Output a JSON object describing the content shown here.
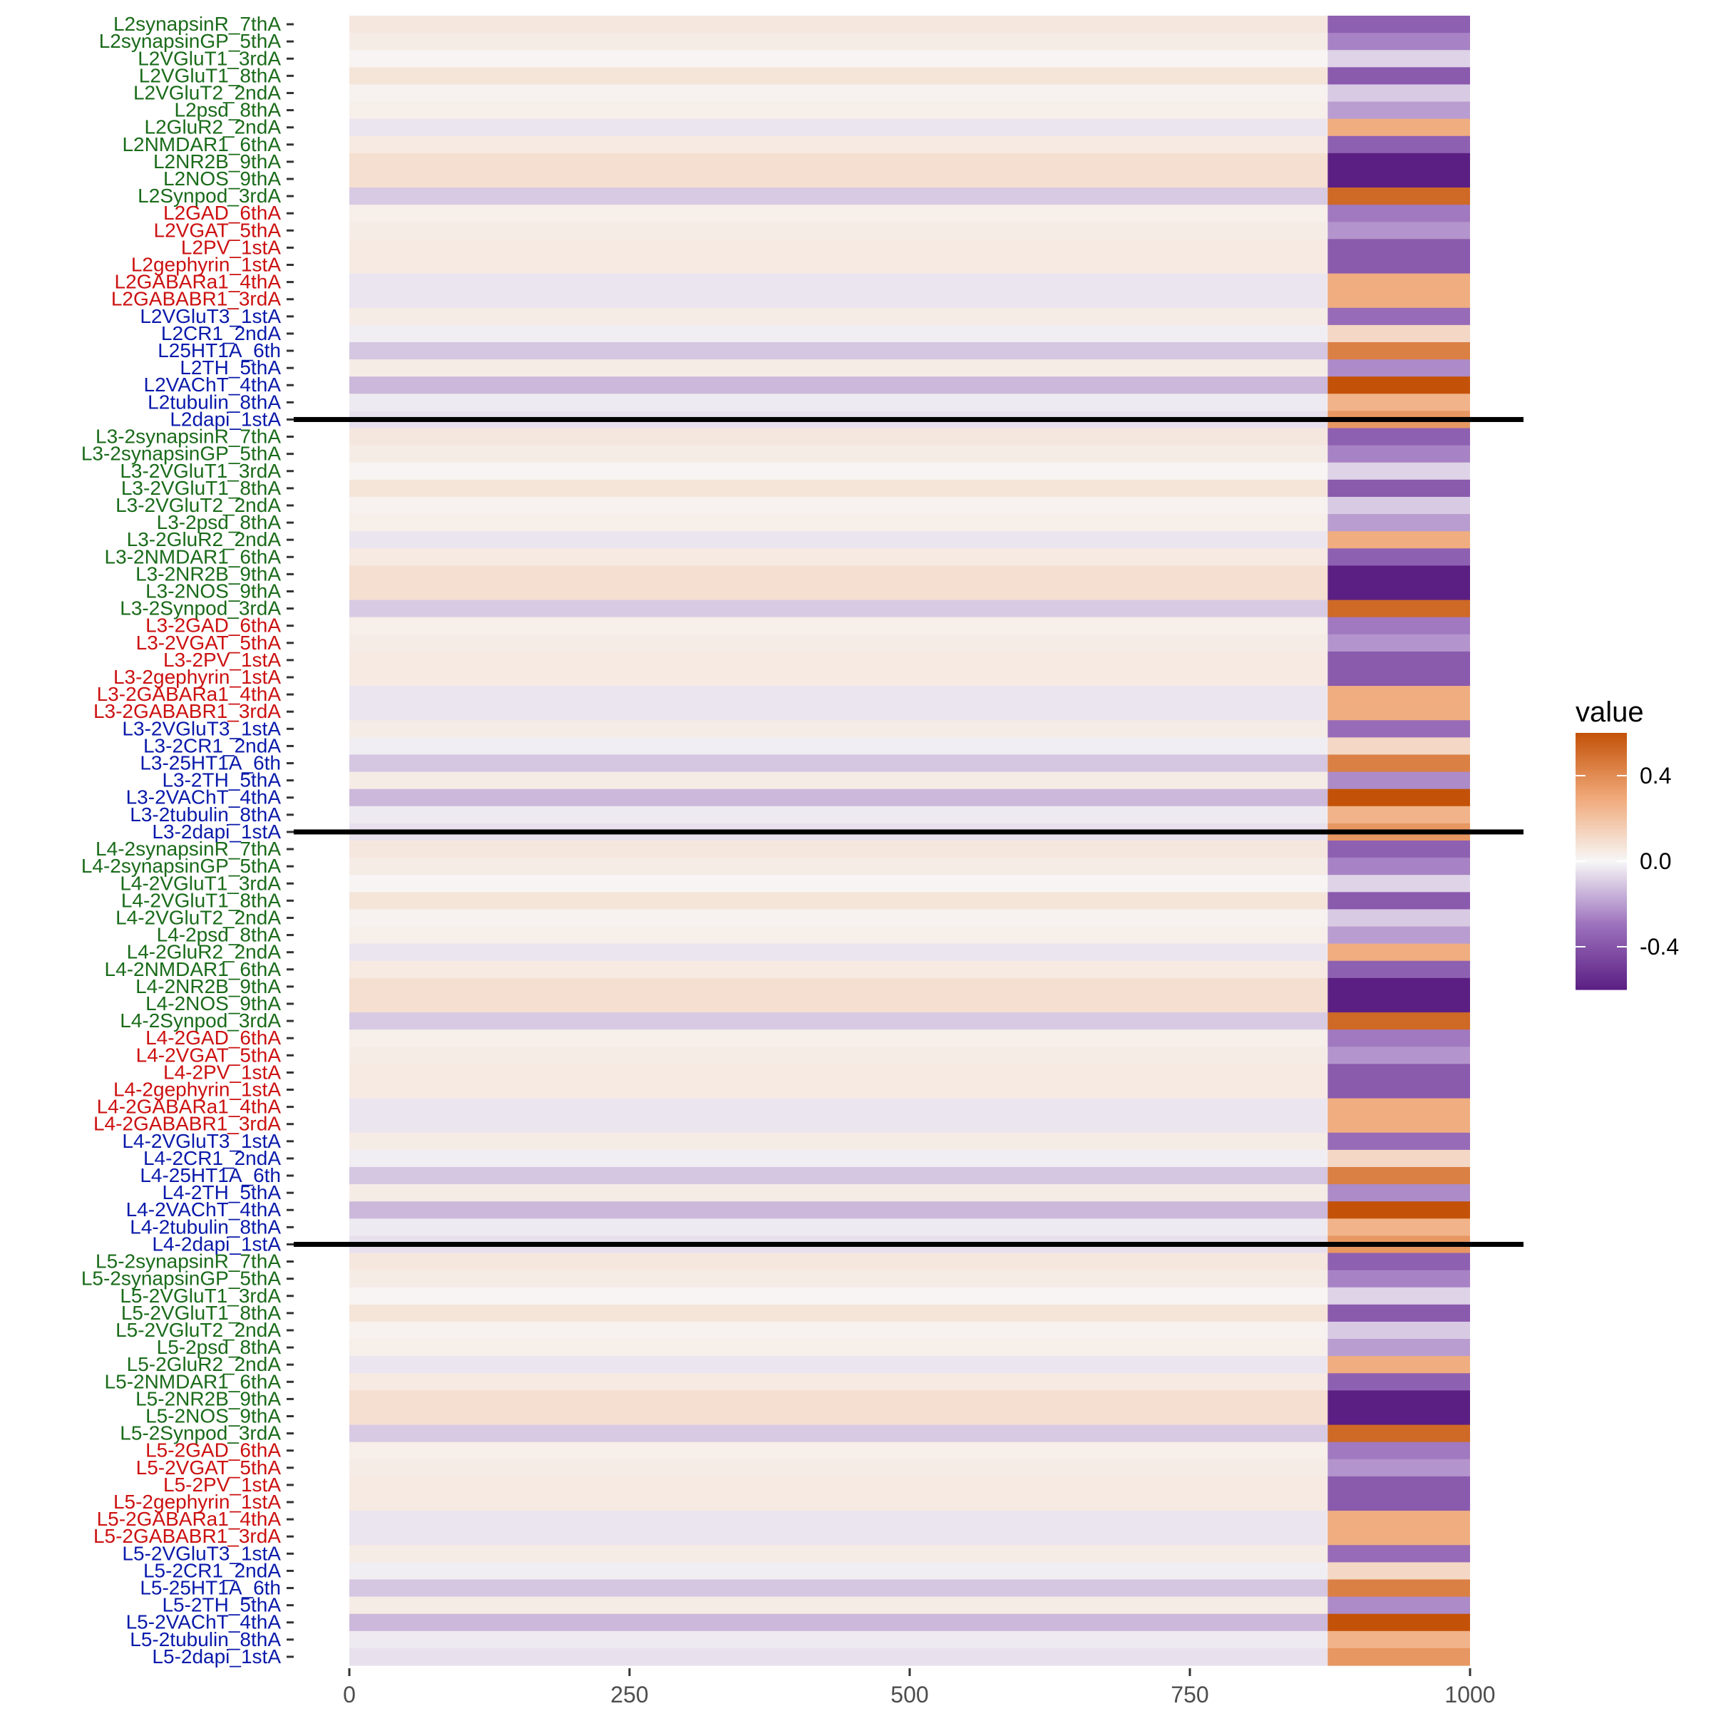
{
  "chart_data": {
    "type": "heatmap",
    "title": "",
    "xlabel": "",
    "ylabel": "",
    "xlim": [
      0,
      1000
    ],
    "x_ticks": [
      "0",
      "250",
      "500",
      "750",
      "1000"
    ],
    "x_tick_values": [
      0,
      250,
      500,
      750,
      1000
    ],
    "columns": [
      {
        "x_start": 0,
        "x_end": 873
      },
      {
        "x_start": 873,
        "x_end": 1000
      }
    ],
    "group_colors": {
      "excitatory": "#1a6b1a",
      "inhibitory": "#cc1111",
      "other": "#0a1aaa"
    },
    "row_order": "top-to-bottom",
    "groups": [
      {
        "rows": [
          {
            "label": "L2synapsinR_7thA",
            "class": "excitatory",
            "values": [
              0.06,
              -0.36
            ]
          },
          {
            "label": "L2synapsinGP_5thA",
            "class": "excitatory",
            "values": [
              0.04,
              -0.26
            ]
          },
          {
            "label": "L2VGluT1_3rdA",
            "class": "excitatory",
            "values": [
              0.01,
              -0.08
            ]
          },
          {
            "label": "L2VGluT1_8thA",
            "class": "excitatory",
            "values": [
              0.07,
              -0.38
            ]
          },
          {
            "label": "L2VGluT2_2ndA",
            "class": "excitatory",
            "values": [
              0.02,
              -0.1
            ]
          },
          {
            "label": "L2psd_8thA",
            "class": "excitatory",
            "values": [
              0.03,
              -0.2
            ]
          },
          {
            "label": "L2GluR2_2ndA",
            "class": "excitatory",
            "values": [
              -0.04,
              0.28
            ]
          },
          {
            "label": "L2NMDAR1_6thA",
            "class": "excitatory",
            "values": [
              0.05,
              -0.36
            ]
          },
          {
            "label": "L2NR2B_9thA",
            "class": "excitatory",
            "values": [
              0.09,
              -0.6
            ]
          },
          {
            "label": "L2NOS_9thA",
            "class": "excitatory",
            "values": [
              0.09,
              -0.6
            ]
          },
          {
            "label": "L2Synpod_3rdA",
            "class": "excitatory",
            "values": [
              -0.1,
              0.52
            ]
          },
          {
            "label": "L2GAD_6thA",
            "class": "inhibitory",
            "values": [
              0.03,
              -0.28
            ]
          },
          {
            "label": "L2VGAT_5thA",
            "class": "inhibitory",
            "values": [
              0.04,
              -0.22
            ]
          },
          {
            "label": "L2PV_1stA",
            "class": "inhibitory",
            "values": [
              0.05,
              -0.38
            ]
          },
          {
            "label": "L2gephyrin_1stA",
            "class": "inhibitory",
            "values": [
              0.05,
              -0.38
            ]
          },
          {
            "label": "L2GABARa1_4thA",
            "class": "inhibitory",
            "values": [
              -0.04,
              0.28
            ]
          },
          {
            "label": "L2GABABR1_3rdA",
            "class": "inhibitory",
            "values": [
              -0.04,
              0.28
            ]
          },
          {
            "label": "L2VGluT3_1stA",
            "class": "other",
            "values": [
              0.04,
              -0.32
            ]
          },
          {
            "label": "L2CR1_2ndA",
            "class": "other",
            "values": [
              -0.02,
              0.12
            ]
          },
          {
            "label": "L25HT1A_6th",
            "class": "other",
            "values": [
              -0.11,
              0.44
            ]
          },
          {
            "label": "L2TH_5thA",
            "class": "other",
            "values": [
              0.04,
              -0.24
            ]
          },
          {
            "label": "L2VAChT_4thA",
            "class": "other",
            "values": [
              -0.14,
              0.6
            ]
          },
          {
            "label": "L2tubulin_8thA",
            "class": "other",
            "values": [
              -0.03,
              0.26
            ]
          },
          {
            "label": "L2dapi_1stA",
            "class": "other",
            "values": [
              -0.05,
              0.36
            ]
          }
        ]
      },
      {
        "rows": [
          {
            "label": "L3-2synapsinR_7thA",
            "class": "excitatory",
            "values": [
              0.06,
              -0.36
            ]
          },
          {
            "label": "L3-2synapsinGP_5thA",
            "class": "excitatory",
            "values": [
              0.04,
              -0.26
            ]
          },
          {
            "label": "L3-2VGluT1_3rdA",
            "class": "excitatory",
            "values": [
              0.01,
              -0.08
            ]
          },
          {
            "label": "L3-2VGluT1_8thA",
            "class": "excitatory",
            "values": [
              0.07,
              -0.38
            ]
          },
          {
            "label": "L3-2VGluT2_2ndA",
            "class": "excitatory",
            "values": [
              0.02,
              -0.1
            ]
          },
          {
            "label": "L3-2psd_8thA",
            "class": "excitatory",
            "values": [
              0.03,
              -0.2
            ]
          },
          {
            "label": "L3-2GluR2_2ndA",
            "class": "excitatory",
            "values": [
              -0.04,
              0.28
            ]
          },
          {
            "label": "L3-2NMDAR1_6thA",
            "class": "excitatory",
            "values": [
              0.05,
              -0.36
            ]
          },
          {
            "label": "L3-2NR2B_9thA",
            "class": "excitatory",
            "values": [
              0.09,
              -0.6
            ]
          },
          {
            "label": "L3-2NOS_9thA",
            "class": "excitatory",
            "values": [
              0.09,
              -0.6
            ]
          },
          {
            "label": "L3-2Synpod_3rdA",
            "class": "excitatory",
            "values": [
              -0.1,
              0.52
            ]
          },
          {
            "label": "L3-2GAD_6thA",
            "class": "inhibitory",
            "values": [
              0.03,
              -0.28
            ]
          },
          {
            "label": "L3-2VGAT_5thA",
            "class": "inhibitory",
            "values": [
              0.04,
              -0.22
            ]
          },
          {
            "label": "L3-2PV_1stA",
            "class": "inhibitory",
            "values": [
              0.05,
              -0.38
            ]
          },
          {
            "label": "L3-2gephyrin_1stA",
            "class": "inhibitory",
            "values": [
              0.05,
              -0.38
            ]
          },
          {
            "label": "L3-2GABARa1_4thA",
            "class": "inhibitory",
            "values": [
              -0.04,
              0.28
            ]
          },
          {
            "label": "L3-2GABABR1_3rdA",
            "class": "inhibitory",
            "values": [
              -0.04,
              0.28
            ]
          },
          {
            "label": "L3-2VGluT3_1stA",
            "class": "other",
            "values": [
              0.04,
              -0.32
            ]
          },
          {
            "label": "L3-2CR1_2ndA",
            "class": "other",
            "values": [
              -0.02,
              0.12
            ]
          },
          {
            "label": "L3-25HT1A_6th",
            "class": "other",
            "values": [
              -0.11,
              0.44
            ]
          },
          {
            "label": "L3-2TH_5thA",
            "class": "other",
            "values": [
              0.04,
              -0.24
            ]
          },
          {
            "label": "L3-2VAChT_4thA",
            "class": "other",
            "values": [
              -0.14,
              0.6
            ]
          },
          {
            "label": "L3-2tubulin_8thA",
            "class": "other",
            "values": [
              -0.03,
              0.26
            ]
          },
          {
            "label": "L3-2dapi_1stA",
            "class": "other",
            "values": [
              -0.05,
              0.36
            ]
          }
        ]
      },
      {
        "rows": [
          {
            "label": "L4-2synapsinR_7thA",
            "class": "excitatory",
            "values": [
              0.06,
              -0.36
            ]
          },
          {
            "label": "L4-2synapsinGP_5thA",
            "class": "excitatory",
            "values": [
              0.04,
              -0.26
            ]
          },
          {
            "label": "L4-2VGluT1_3rdA",
            "class": "excitatory",
            "values": [
              0.01,
              -0.08
            ]
          },
          {
            "label": "L4-2VGluT1_8thA",
            "class": "excitatory",
            "values": [
              0.07,
              -0.38
            ]
          },
          {
            "label": "L4-2VGluT2_2ndA",
            "class": "excitatory",
            "values": [
              0.02,
              -0.1
            ]
          },
          {
            "label": "L4-2psd_8thA",
            "class": "excitatory",
            "values": [
              0.03,
              -0.2
            ]
          },
          {
            "label": "L4-2GluR2_2ndA",
            "class": "excitatory",
            "values": [
              -0.04,
              0.28
            ]
          },
          {
            "label": "L4-2NMDAR1_6thA",
            "class": "excitatory",
            "values": [
              0.05,
              -0.36
            ]
          },
          {
            "label": "L4-2NR2B_9thA",
            "class": "excitatory",
            "values": [
              0.09,
              -0.6
            ]
          },
          {
            "label": "L4-2NOS_9thA",
            "class": "excitatory",
            "values": [
              0.09,
              -0.6
            ]
          },
          {
            "label": "L4-2Synpod_3rdA",
            "class": "excitatory",
            "values": [
              -0.1,
              0.52
            ]
          },
          {
            "label": "L4-2GAD_6thA",
            "class": "inhibitory",
            "values": [
              0.03,
              -0.28
            ]
          },
          {
            "label": "L4-2VGAT_5thA",
            "class": "inhibitory",
            "values": [
              0.04,
              -0.22
            ]
          },
          {
            "label": "L4-2PV_1stA",
            "class": "inhibitory",
            "values": [
              0.05,
              -0.38
            ]
          },
          {
            "label": "L4-2gephyrin_1stA",
            "class": "inhibitory",
            "values": [
              0.05,
              -0.38
            ]
          },
          {
            "label": "L4-2GABARa1_4thA",
            "class": "inhibitory",
            "values": [
              -0.04,
              0.28
            ]
          },
          {
            "label": "L4-2GABABR1_3rdA",
            "class": "inhibitory",
            "values": [
              -0.04,
              0.28
            ]
          },
          {
            "label": "L4-2VGluT3_1stA",
            "class": "other",
            "values": [
              0.04,
              -0.32
            ]
          },
          {
            "label": "L4-2CR1_2ndA",
            "class": "other",
            "values": [
              -0.02,
              0.12
            ]
          },
          {
            "label": "L4-25HT1A_6th",
            "class": "other",
            "values": [
              -0.11,
              0.44
            ]
          },
          {
            "label": "L4-2TH_5thA",
            "class": "other",
            "values": [
              0.04,
              -0.24
            ]
          },
          {
            "label": "L4-2VAChT_4thA",
            "class": "other",
            "values": [
              -0.14,
              0.6
            ]
          },
          {
            "label": "L4-2tubulin_8thA",
            "class": "other",
            "values": [
              -0.03,
              0.26
            ]
          },
          {
            "label": "L4-2dapi_1stA",
            "class": "other",
            "values": [
              -0.05,
              0.36
            ]
          }
        ]
      },
      {
        "rows": [
          {
            "label": "L5-2synapsinR_7thA",
            "class": "excitatory",
            "values": [
              0.06,
              -0.36
            ]
          },
          {
            "label": "L5-2synapsinGP_5thA",
            "class": "excitatory",
            "values": [
              0.04,
              -0.26
            ]
          },
          {
            "label": "L5-2VGluT1_3rdA",
            "class": "excitatory",
            "values": [
              0.01,
              -0.08
            ]
          },
          {
            "label": "L5-2VGluT1_8thA",
            "class": "excitatory",
            "values": [
              0.07,
              -0.38
            ]
          },
          {
            "label": "L5-2VGluT2_2ndA",
            "class": "excitatory",
            "values": [
              0.02,
              -0.1
            ]
          },
          {
            "label": "L5-2psd_8thA",
            "class": "excitatory",
            "values": [
              0.03,
              -0.2
            ]
          },
          {
            "label": "L5-2GluR2_2ndA",
            "class": "excitatory",
            "values": [
              -0.04,
              0.28
            ]
          },
          {
            "label": "L5-2NMDAR1_6thA",
            "class": "excitatory",
            "values": [
              0.05,
              -0.36
            ]
          },
          {
            "label": "L5-2NR2B_9thA",
            "class": "excitatory",
            "values": [
              0.09,
              -0.6
            ]
          },
          {
            "label": "L5-2NOS_9thA",
            "class": "excitatory",
            "values": [
              0.09,
              -0.6
            ]
          },
          {
            "label": "L5-2Synpod_3rdA",
            "class": "excitatory",
            "values": [
              -0.1,
              0.52
            ]
          },
          {
            "label": "L5-2GAD_6thA",
            "class": "inhibitory",
            "values": [
              0.03,
              -0.28
            ]
          },
          {
            "label": "L5-2VGAT_5thA",
            "class": "inhibitory",
            "values": [
              0.04,
              -0.22
            ]
          },
          {
            "label": "L5-2PV_1stA",
            "class": "inhibitory",
            "values": [
              0.05,
              -0.38
            ]
          },
          {
            "label": "L5-2gephyrin_1stA",
            "class": "inhibitory",
            "values": [
              0.05,
              -0.38
            ]
          },
          {
            "label": "L5-2GABARa1_4thA",
            "class": "inhibitory",
            "values": [
              -0.04,
              0.28
            ]
          },
          {
            "label": "L5-2GABABR1_3rdA",
            "class": "inhibitory",
            "values": [
              -0.04,
              0.28
            ]
          },
          {
            "label": "L5-2VGluT3_1stA",
            "class": "other",
            "values": [
              0.04,
              -0.32
            ]
          },
          {
            "label": "L5-2CR1_2ndA",
            "class": "other",
            "values": [
              -0.02,
              0.12
            ]
          },
          {
            "label": "L5-25HT1A_6th",
            "class": "other",
            "values": [
              -0.11,
              0.44
            ]
          },
          {
            "label": "L5-2TH_5thA",
            "class": "other",
            "values": [
              0.04,
              -0.24
            ]
          },
          {
            "label": "L5-2VAChT_4thA",
            "class": "other",
            "values": [
              -0.14,
              0.6
            ]
          },
          {
            "label": "L5-2tubulin_8thA",
            "class": "other",
            "values": [
              -0.03,
              0.26
            ]
          },
          {
            "label": "L5-2dapi_1stA",
            "class": "other",
            "values": [
              -0.05,
              0.36
            ]
          }
        ]
      }
    ],
    "legend": {
      "title": "value",
      "position": "right",
      "ticks": [
        "0.4",
        "0.0",
        "-0.4"
      ],
      "tick_values": [
        0.4,
        0.0,
        -0.4
      ],
      "range": [
        -0.6,
        0.6
      ],
      "colors": {
        "low": "#5b1f83",
        "mid_low": "#9b70bc",
        "mid": "#f7f7f7",
        "mid_high": "#f0a878",
        "high": "#c35208"
      }
    }
  }
}
